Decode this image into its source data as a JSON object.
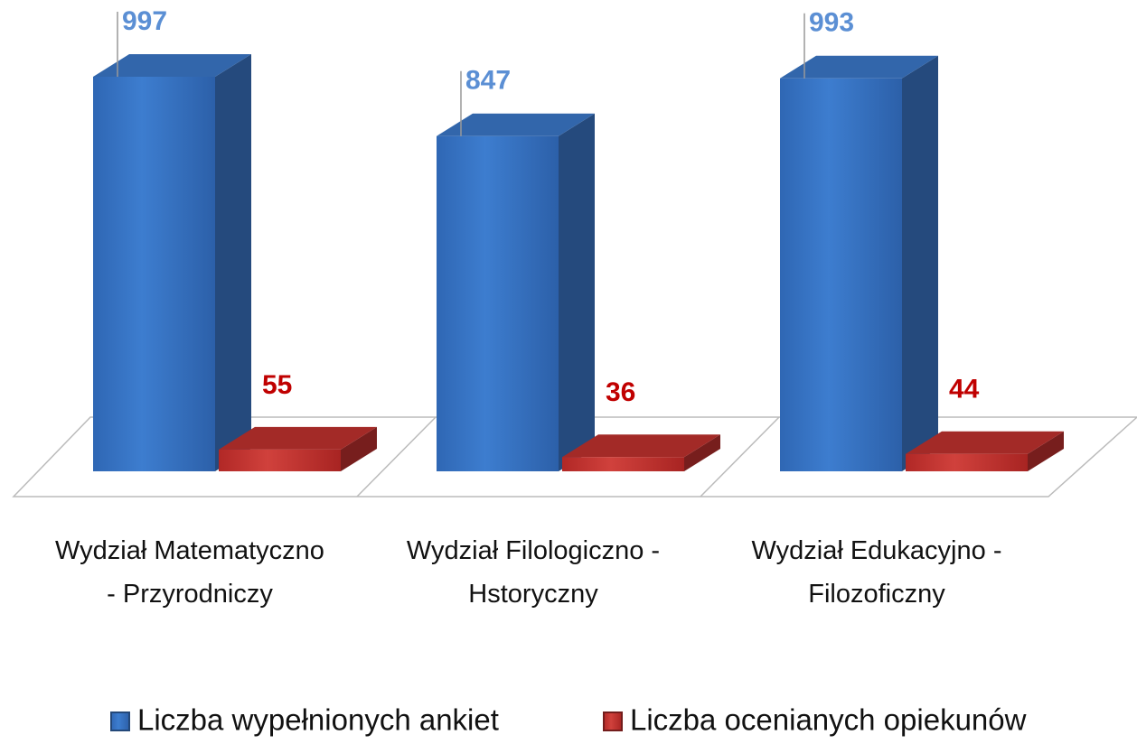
{
  "chart_data": {
    "type": "bar3d",
    "categories": [
      "Wydział Matematyczno - Przyrodniczy",
      "Wydział Filologiczno - Hstoryczny",
      "Wydział Edukacyjno - Filozoficzny"
    ],
    "series": [
      {
        "name": "Liczba wypełnionych ankiet",
        "color": "#3b78c9",
        "label_color": "#5b8fd4",
        "values": [
          997,
          847,
          993
        ]
      },
      {
        "name": "Liczba ocenianych opiekunów",
        "color": "#c0312e",
        "label_color": "#c00000",
        "values": [
          55,
          36,
          44
        ]
      }
    ],
    "legend": "bottom"
  }
}
